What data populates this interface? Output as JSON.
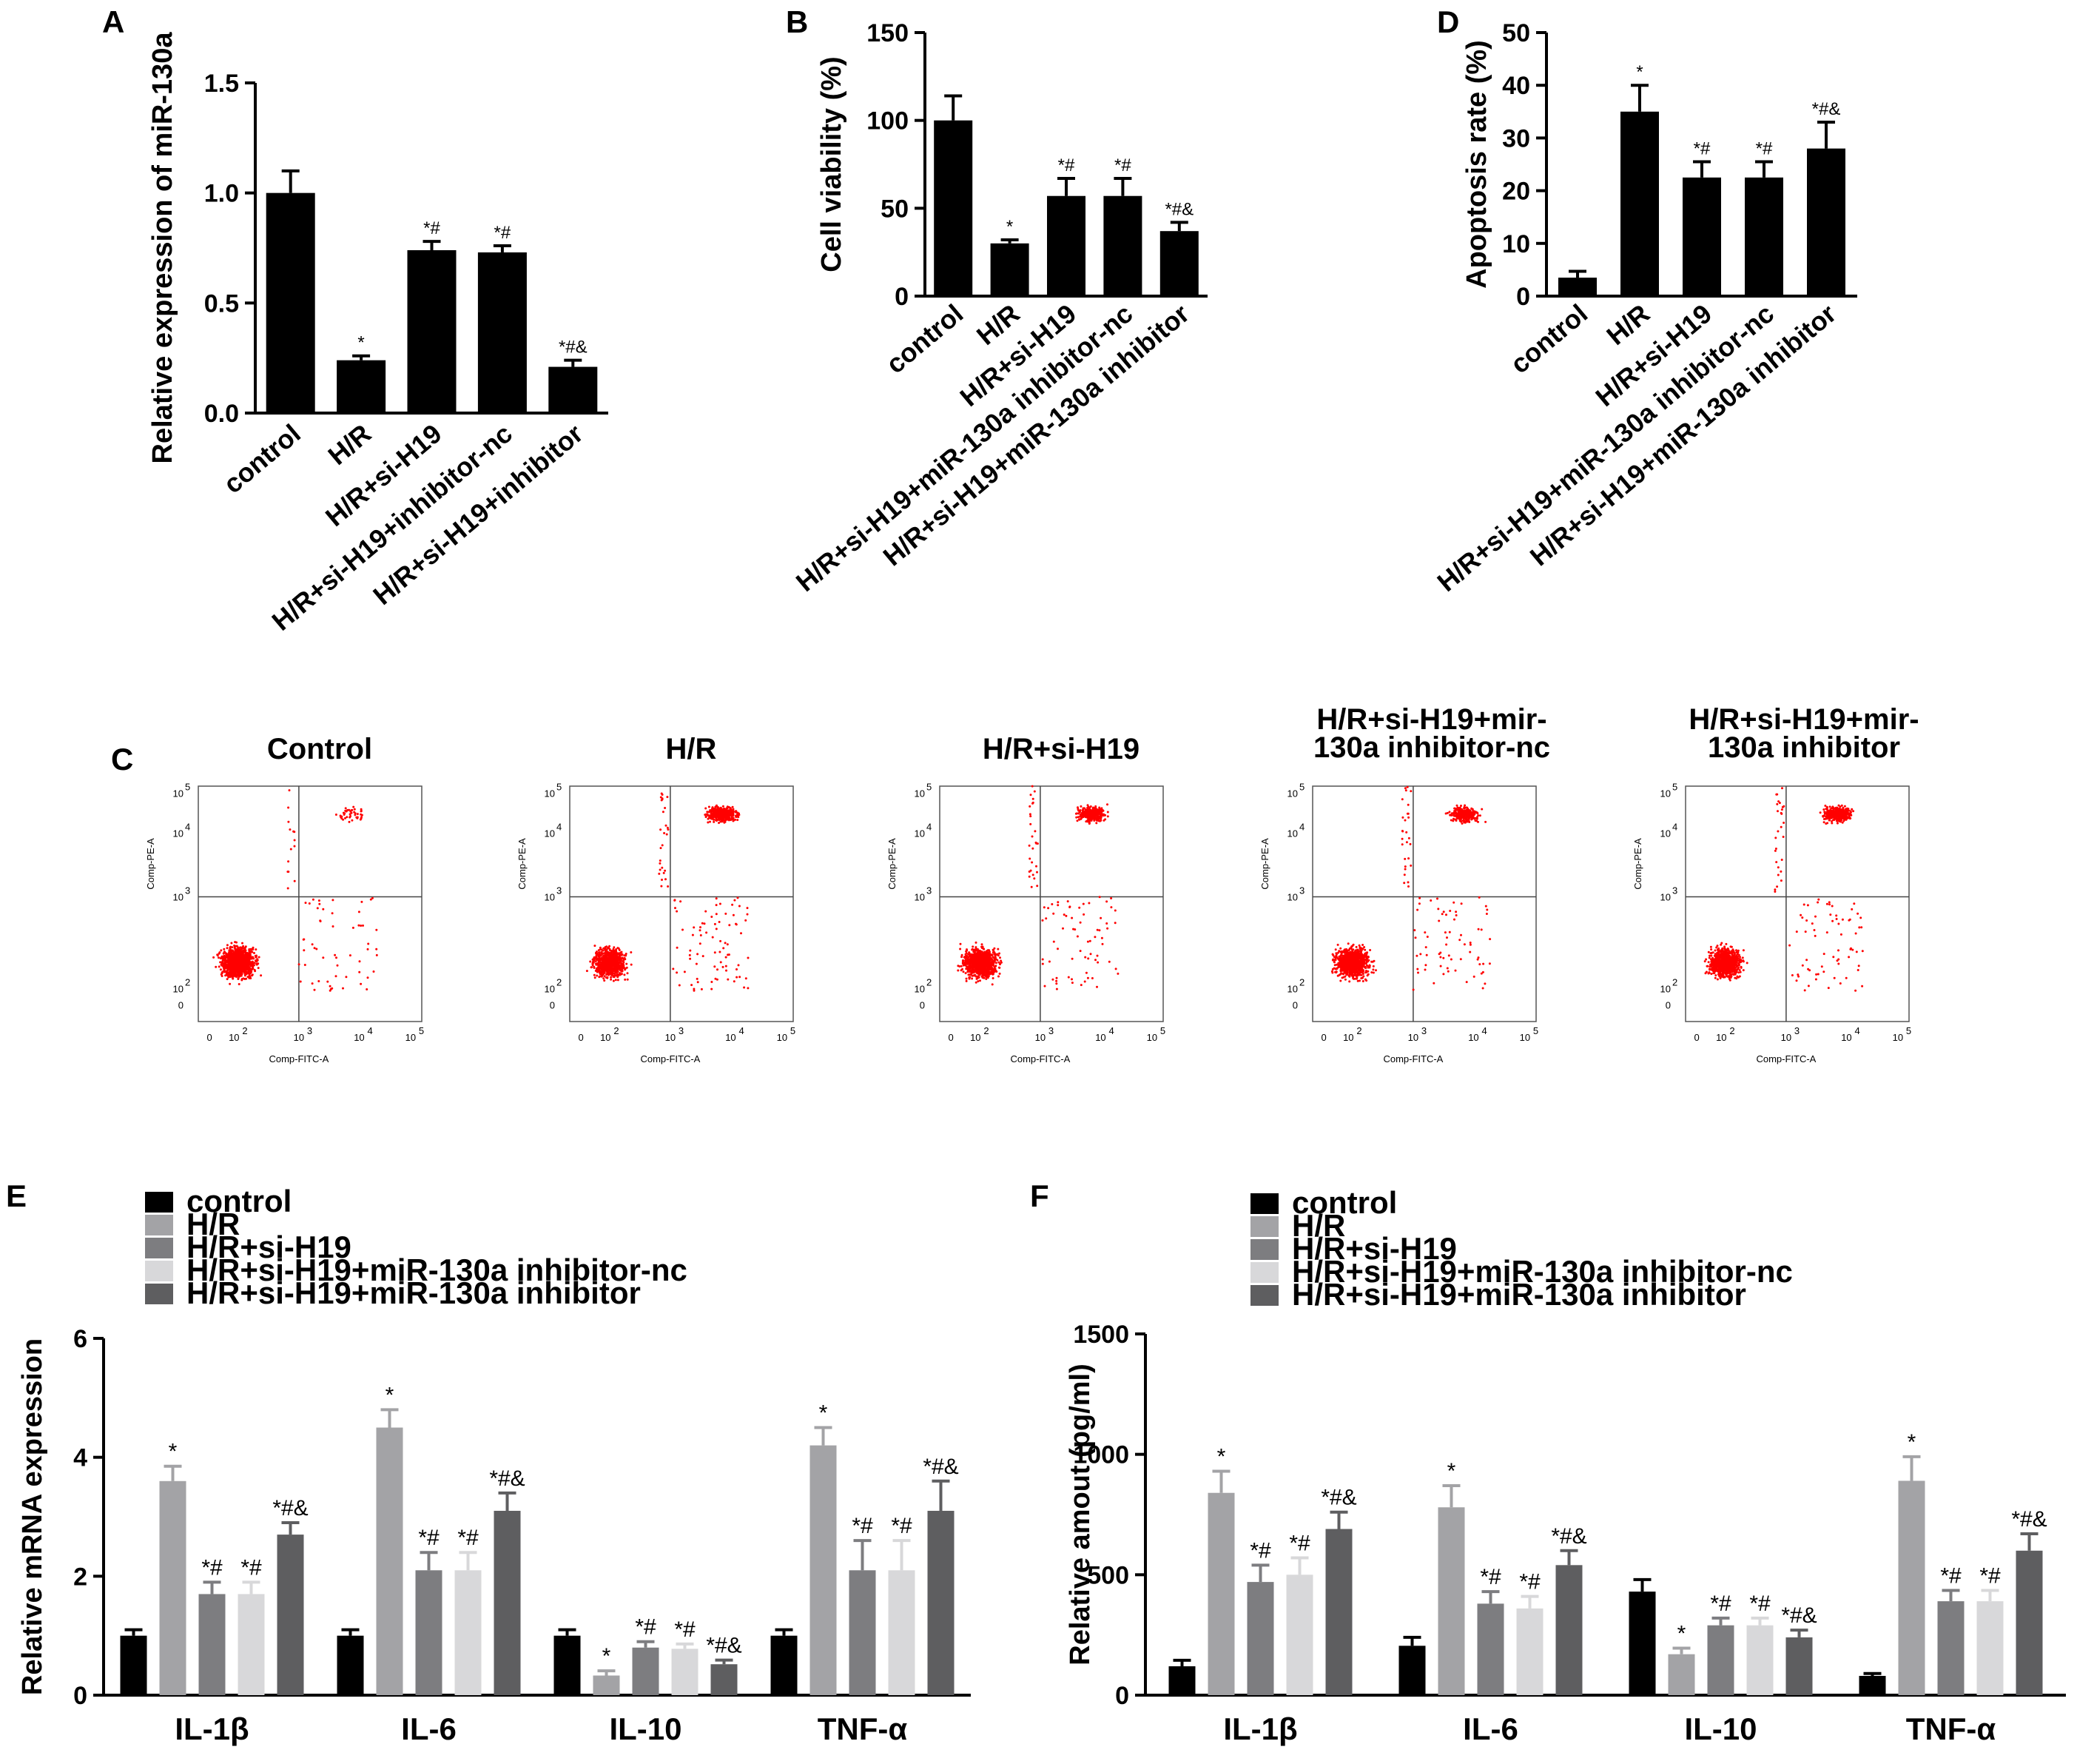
{
  "panels": {
    "A": "A",
    "B": "B",
    "C": "C",
    "D": "D",
    "E": "E",
    "F": "F"
  },
  "chart_data": [
    {
      "id": "A",
      "type": "bar",
      "title": "",
      "xlabel": "",
      "ylabel": "Relative expression of miR-130a",
      "ylim": [
        0,
        1.5
      ],
      "yticks": [
        "0.0",
        "0.5",
        "1.0",
        "1.5"
      ],
      "categories": [
        "control",
        "H/R",
        "H/R+si-H19",
        "H/R+si-H19+inhibitor-nc",
        "H/R+si-H19+inhibitor"
      ],
      "values": [
        1.0,
        0.24,
        0.74,
        0.73,
        0.21
      ],
      "errors": [
        0.1,
        0.02,
        0.04,
        0.03,
        0.03
      ],
      "annotations": [
        "",
        "*",
        "*#",
        "*#",
        "*#&"
      ],
      "colors": [
        "#000000",
        "#000000",
        "#000000",
        "#000000",
        "#000000"
      ]
    },
    {
      "id": "B",
      "type": "bar",
      "title": "",
      "xlabel": "",
      "ylabel": "Cell viability (%)",
      "ylim": [
        0,
        150
      ],
      "yticks": [
        "0",
        "50",
        "100",
        "150"
      ],
      "categories": [
        "control",
        "H/R",
        "H/R+si-H19",
        "H/R+si-H19+miR-130a inhibitor-nc",
        "H/R+si-H19+miR-130a inhibitor"
      ],
      "values": [
        100,
        30,
        57,
        57,
        37
      ],
      "errors": [
        14,
        2,
        10,
        10,
        5
      ],
      "annotations": [
        "",
        "*",
        "*#",
        "*#",
        "*#&"
      ],
      "colors": [
        "#000000",
        "#000000",
        "#000000",
        "#000000",
        "#000000"
      ]
    },
    {
      "id": "D",
      "type": "bar",
      "title": "",
      "xlabel": "",
      "ylabel": "Apoptosis rate (%)",
      "ylim": [
        0,
        50
      ],
      "yticks": [
        "0",
        "10",
        "20",
        "30",
        "40",
        "50"
      ],
      "categories": [
        "control",
        "H/R",
        "H/R+si-H19",
        "H/R+si-H19+miR-130a inhibitor-nc",
        "H/R+si-H19+miR-130a inhibitor"
      ],
      "values": [
        3.5,
        35,
        22.5,
        22.5,
        28
      ],
      "errors": [
        1.2,
        5,
        3,
        3,
        5
      ],
      "annotations": [
        "",
        "*",
        "*#",
        "*#",
        "*#&"
      ],
      "colors": [
        "#000000",
        "#000000",
        "#000000",
        "#000000",
        "#000000"
      ]
    },
    {
      "id": "E",
      "type": "bar",
      "title": "",
      "xlabel": "",
      "ylabel": "Relative mRNA expression",
      "ylim": [
        0,
        6
      ],
      "yticks": [
        "0",
        "2",
        "4",
        "6"
      ],
      "categories": [
        "IL-1β",
        "IL-6",
        "IL-10",
        "TNF-α"
      ],
      "legend": "top-left",
      "series": [
        {
          "name": "control",
          "color": "#000000",
          "values": [
            1.0,
            1.0,
            1.0,
            1.0
          ],
          "errors": [
            0.1,
            0.1,
            0.1,
            0.1
          ],
          "annotations": [
            "",
            "",
            "",
            ""
          ]
        },
        {
          "name": "H/R",
          "color": "#a3a3a6",
          "values": [
            3.6,
            4.5,
            0.33,
            4.2
          ],
          "errors": [
            0.25,
            0.3,
            0.08,
            0.3
          ],
          "annotations": [
            "*",
            "*",
            "*",
            "*"
          ]
        },
        {
          "name": "H/R+si-H19",
          "color": "#7d7d80",
          "values": [
            1.7,
            2.1,
            0.8,
            2.1
          ],
          "errors": [
            0.2,
            0.3,
            0.1,
            0.5
          ],
          "annotations": [
            "*#",
            "*#",
            "*#",
            "*#"
          ]
        },
        {
          "name": "H/R+si-H19+miR-130a inhibitor-nc",
          "color": "#d8d8da",
          "values": [
            1.7,
            2.1,
            0.78,
            2.1
          ],
          "errors": [
            0.2,
            0.3,
            0.08,
            0.5
          ],
          "annotations": [
            "*#",
            "*#",
            "*#",
            "*#"
          ]
        },
        {
          "name": "H/R+si-H19+miR-130a inhibitor",
          "color": "#5e5e60",
          "values": [
            2.7,
            3.1,
            0.52,
            3.1
          ],
          "errors": [
            0.2,
            0.3,
            0.07,
            0.5
          ],
          "annotations": [
            "*#&",
            "*#&",
            "*#&",
            "*#&"
          ]
        }
      ]
    },
    {
      "id": "F",
      "type": "bar",
      "title": "",
      "xlabel": "",
      "ylabel": "Relative amout (pg/ml)",
      "ylim": [
        0,
        1500
      ],
      "yticks": [
        "0",
        "500",
        "1000",
        "1500"
      ],
      "categories": [
        "IL-1β",
        "IL-6",
        "IL-10",
        "TNF-α"
      ],
      "legend": "top-left",
      "series": [
        {
          "name": "control",
          "color": "#000000",
          "values": [
            120,
            205,
            430,
            80
          ],
          "errors": [
            25,
            35,
            50,
            10
          ],
          "annotations": [
            "",
            "",
            "",
            ""
          ]
        },
        {
          "name": "H/R",
          "color": "#a3a3a6",
          "values": [
            840,
            780,
            170,
            890
          ],
          "errors": [
            90,
            90,
            25,
            100
          ],
          "annotations": [
            "*",
            "*",
            "*",
            "*"
          ]
        },
        {
          "name": "H/R+si-H19",
          "color": "#7d7d80",
          "values": [
            470,
            380,
            290,
            390
          ],
          "errors": [
            70,
            50,
            30,
            45
          ],
          "annotations": [
            "*#",
            "*#",
            "*#",
            "*#"
          ]
        },
        {
          "name": "H/R+si-H19+miR-130a inhibitor-nc",
          "color": "#d8d8da",
          "values": [
            500,
            360,
            290,
            390
          ],
          "errors": [
            70,
            50,
            30,
            45
          ],
          "annotations": [
            "*#",
            "*#",
            "*#",
            "*#"
          ]
        },
        {
          "name": "H/R+si-H19+miR-130a inhibitor",
          "color": "#5e5e60",
          "values": [
            690,
            540,
            240,
            600
          ],
          "errors": [
            70,
            60,
            30,
            70
          ],
          "annotations": [
            "*#&",
            "*#&",
            "*#&",
            "*#&"
          ]
        }
      ]
    }
  ],
  "flow_cytometry": {
    "x_axis_label": "Comp-FITC-A",
    "y_axis_label": "Comp-PE-A",
    "tick_labels": [
      "0",
      "10",
      "10",
      "10",
      "10"
    ],
    "tick_exponents": [
      "",
      "2",
      "3",
      "4",
      "5"
    ],
    "plots": [
      {
        "title_lines": [
          "Control"
        ],
        "quadrant_fraction": {
          "lower_left": 0.92,
          "lower_right": 0.04,
          "upper_left": 0.01,
          "upper_right": 0.03
        },
        "point_color": "#ff0000"
      },
      {
        "title_lines": [
          "H/R"
        ],
        "quadrant_fraction": {
          "lower_left": 0.55,
          "lower_right": 0.06,
          "upper_left": 0.02,
          "upper_right": 0.37
        },
        "point_color": "#ff0000"
      },
      {
        "title_lines": [
          "H/R+si-H19"
        ],
        "quadrant_fraction": {
          "lower_left": 0.7,
          "lower_right": 0.05,
          "upper_left": 0.02,
          "upper_right": 0.23
        },
        "point_color": "#ff0000"
      },
      {
        "title_lines": [
          "H/R+si-H19+mir-",
          "130a inhibitor-nc"
        ],
        "quadrant_fraction": {
          "lower_left": 0.7,
          "lower_right": 0.05,
          "upper_left": 0.02,
          "upper_right": 0.23
        },
        "point_color": "#ff0000"
      },
      {
        "title_lines": [
          "H/R+si-H19+mir-",
          "130a inhibitor"
        ],
        "quadrant_fraction": {
          "lower_left": 0.63,
          "lower_right": 0.05,
          "upper_left": 0.02,
          "upper_right": 0.3
        },
        "point_color": "#ff0000"
      }
    ]
  }
}
